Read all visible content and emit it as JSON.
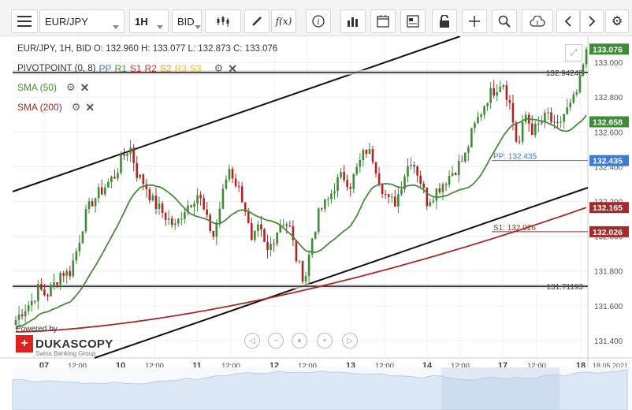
{
  "toolbar": {
    "instrument": "EUR/JPY",
    "period": "1H",
    "side": "BID"
  },
  "info": {
    "line": "EUR/JPY, 1H, BID   O: 132.960 H: 133.077 L: 132.873 C: 133.076",
    "pivot_label": "PIVOTPOINT (0, 8)",
    "pivot_levels": [
      "PP",
      "R1",
      "S1",
      "R2",
      "S2",
      "R3",
      "S3"
    ],
    "pivot_level_colors": [
      "#3a7bd5",
      "#3a9a3a",
      "#c0392b",
      "#c0392b",
      "#f39c12",
      "#f1c40f",
      "#f1c40f"
    ]
  },
  "legend": [
    {
      "label": "SMA (50)",
      "color": "#4b8a3b"
    },
    {
      "label": "SMA (200)",
      "color": "#a52a2a"
    }
  ],
  "brand": {
    "powered": "Powered by",
    "name": "DUKASCOPY",
    "sub": "Swiss Banking Group"
  },
  "colors": {
    "up": "#3d8b37",
    "down": "#b22222",
    "sma50": "#4b8a3b",
    "sma200": "#a52a2a",
    "pp": "#3a7bd5",
    "s1": "#a52a2a"
  },
  "chart_data": {
    "type": "candlestick",
    "symbol": "EUR/JPY",
    "timeframe": "1H",
    "ylim": [
      131.3,
      133.15
    ],
    "y_ticks": [
      "133.000",
      "132.800",
      "132.600",
      "132.400",
      "132.200",
      "132.000",
      "131.800",
      "131.600",
      "131.400"
    ],
    "x_ticks": [
      "07",
      "12:00",
      "10",
      "12:00",
      "11",
      "12:00",
      "12",
      "12:00",
      "13",
      "12:00",
      "14",
      "12:00",
      "17",
      "12:00",
      "18"
    ],
    "x_right_label": "18.05.2021",
    "price_tags": [
      {
        "label": "133.076",
        "value": 133.076,
        "color": "#3d8b37"
      },
      {
        "label": "132.658",
        "value": 132.658,
        "color": "#3d8b37"
      },
      {
        "label": "132.435",
        "value": 132.435,
        "color": "#3a7bd5"
      },
      {
        "label": "132.165",
        "value": 132.165,
        "color": "#a52a2a"
      },
      {
        "label": "132.026",
        "value": 132.026,
        "color": "#a52a2a"
      }
    ],
    "horizontal_lines": [
      {
        "label": "132.94248",
        "value": 132.94248
      },
      {
        "label": "131.71193",
        "value": 131.71193
      }
    ],
    "pivot_lines": [
      {
        "label": "PP: 132.435",
        "value": 132.435
      },
      {
        "label": "S1: 132.026",
        "value": 132.026
      }
    ],
    "close_path": [
      131.52,
      131.58,
      131.62,
      131.7,
      131.66,
      131.72,
      131.8,
      131.78,
      131.92,
      132.1,
      132.2,
      132.25,
      132.3,
      132.35,
      132.45,
      132.52,
      132.35,
      132.3,
      132.2,
      132.15,
      132.1,
      132.05,
      132.15,
      132.2,
      132.25,
      132.1,
      132.0,
      132.2,
      132.4,
      132.3,
      132.2,
      131.95,
      132.05,
      131.9,
      132.0,
      132.1,
      132.05,
      131.85,
      131.75,
      132.0,
      132.15,
      132.2,
      132.3,
      132.35,
      132.3,
      132.4,
      132.5,
      132.45,
      132.3,
      132.2,
      132.2,
      132.35,
      132.45,
      132.35,
      132.2,
      132.25,
      132.3,
      132.35,
      132.4,
      132.45,
      132.6,
      132.7,
      132.8,
      132.85,
      132.9,
      132.75,
      132.5,
      132.7,
      132.6,
      132.65,
      132.7,
      132.6,
      132.7,
      132.75,
      132.85,
      133.07
    ]
  }
}
